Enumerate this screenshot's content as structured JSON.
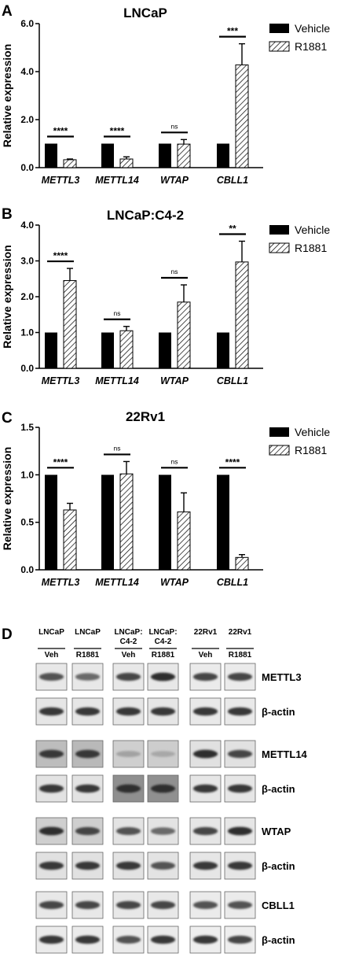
{
  "legend": {
    "vehicle": "Vehicle",
    "r1881": "R1881"
  },
  "chart_data": [
    {
      "panel": "A",
      "type": "bar",
      "title": "LNCaP",
      "ylabel": "Relative expression",
      "ylim": [
        0,
        6
      ],
      "yticks": [
        0,
        2,
        4,
        6
      ],
      "ytick_labels": [
        "0.0",
        "2.0",
        "4.0",
        "6.0"
      ],
      "categories": [
        "METTL3",
        "METTL14",
        "WTAP",
        "CBLL1"
      ],
      "series": [
        {
          "name": "Vehicle",
          "values": [
            1.0,
            1.0,
            1.0,
            1.0
          ],
          "errors": [
            0,
            0,
            0,
            0
          ]
        },
        {
          "name": "R1881",
          "values": [
            0.33,
            0.36,
            0.98,
            4.28
          ],
          "errors": [
            0.03,
            0.09,
            0.19,
            0.88
          ]
        }
      ],
      "significance": [
        "****",
        "****",
        "ns",
        "***"
      ]
    },
    {
      "panel": "B",
      "type": "bar",
      "title": "LNCaP:C4-2",
      "ylabel": "Relative expression",
      "ylim": [
        0,
        4
      ],
      "yticks": [
        0,
        1,
        2,
        3,
        4
      ],
      "ytick_labels": [
        "0.0",
        "1.0",
        "2.0",
        "3.0",
        "4.0"
      ],
      "categories": [
        "METTL3",
        "METTL14",
        "WTAP",
        "CBLL1"
      ],
      "series": [
        {
          "name": "Vehicle",
          "values": [
            1.0,
            1.0,
            1.0,
            1.0
          ],
          "errors": [
            0,
            0,
            0,
            0
          ]
        },
        {
          "name": "R1881",
          "values": [
            2.45,
            1.05,
            1.85,
            2.97
          ],
          "errors": [
            0.34,
            0.12,
            0.48,
            0.58
          ]
        }
      ],
      "significance": [
        "****",
        "ns",
        "ns",
        "**"
      ]
    },
    {
      "panel": "C",
      "type": "bar",
      "title": "22Rv1",
      "ylabel": "Relative expression",
      "ylim": [
        0,
        1.5
      ],
      "yticks": [
        0,
        0.5,
        1.0,
        1.5
      ],
      "ytick_labels": [
        "0.0",
        "0.5",
        "1.0",
        "1.5"
      ],
      "categories": [
        "METTL3",
        "METTL14",
        "WTAP",
        "CBLL1"
      ],
      "series": [
        {
          "name": "Vehicle",
          "values": [
            1.0,
            1.0,
            1.0,
            1.0
          ],
          "errors": [
            0,
            0,
            0,
            0
          ]
        },
        {
          "name": "R1881",
          "values": [
            0.63,
            1.01,
            0.61,
            0.13
          ],
          "errors": [
            0.07,
            0.13,
            0.2,
            0.03
          ]
        }
      ],
      "significance": [
        "****",
        "ns",
        "ns",
        "****"
      ]
    }
  ],
  "western_blot": {
    "panel": "D",
    "columns": [
      {
        "line1": "LNCaP",
        "line2": "",
        "condition": "Veh"
      },
      {
        "line1": "LNCaP",
        "line2": "",
        "condition": "R1881"
      },
      {
        "line1": "LNCaP:",
        "line2": "C4-2",
        "condition": "Veh"
      },
      {
        "line1": "LNCaP:",
        "line2": "C4-2",
        "condition": "R1881"
      },
      {
        "line1": "22Rv1",
        "line2": "",
        "condition": "Veh"
      },
      {
        "line1": "22Rv1",
        "line2": "",
        "condition": "R1881"
      }
    ],
    "rows": [
      {
        "label": "METTL3",
        "band_intensity": [
          0.8,
          0.7,
          0.85,
          0.95,
          0.85,
          0.85
        ],
        "background": [
          "#e8e8e8",
          "#e8e8e8",
          "#e8e8e8",
          "#e8e8e8",
          "#ebebeb",
          "#ebebeb"
        ]
      },
      {
        "label": "β-actin",
        "band_intensity": [
          0.9,
          0.9,
          0.9,
          0.9,
          0.9,
          0.9
        ],
        "background": [
          "#e6e6e6",
          "#e6e6e6",
          "#e6e6e6",
          "#e6e6e6",
          "#e9e9e9",
          "#e9e9e9"
        ]
      },
      {
        "label": "METTL14",
        "band_intensity": [
          0.9,
          0.9,
          0.35,
          0.3,
          0.95,
          0.85
        ],
        "background": [
          "#bdbdbd",
          "#b9b9b9",
          "#cfcfcf",
          "#cdcdcd",
          "#e1e1e1",
          "#e1e1e1"
        ]
      },
      {
        "label": "β-actin",
        "band_intensity": [
          0.9,
          0.9,
          0.95,
          0.95,
          0.9,
          0.9
        ],
        "background": [
          "#e3e3e3",
          "#e3e3e3",
          "#8f8f8f",
          "#909090",
          "#e6e6e6",
          "#e6e6e6"
        ]
      },
      {
        "label": "WTAP",
        "band_intensity": [
          0.95,
          0.85,
          0.8,
          0.7,
          0.85,
          0.95
        ],
        "background": [
          "#cfcfcf",
          "#cfcfcf",
          "#e3e3e3",
          "#e3e3e3",
          "#e6e6e6",
          "#e6e6e6"
        ]
      },
      {
        "label": "β-actin",
        "band_intensity": [
          0.9,
          0.9,
          0.9,
          0.8,
          0.9,
          0.9
        ],
        "background": [
          "#e1e1e1",
          "#e1e1e1",
          "#e3e3e3",
          "#e3e3e3",
          "#e6e6e6",
          "#e6e6e6"
        ]
      },
      {
        "label": "CBLL1",
        "band_intensity": [
          0.85,
          0.85,
          0.85,
          0.85,
          0.8,
          0.8
        ],
        "background": [
          "#e8e8e8",
          "#e8e8e8",
          "#e8e8e8",
          "#e8e8e8",
          "#ebebeb",
          "#ebebeb"
        ]
      },
      {
        "label": "β-actin",
        "band_intensity": [
          0.9,
          0.9,
          0.8,
          0.9,
          0.9,
          0.85
        ],
        "background": [
          "#ebebeb",
          "#ebebeb",
          "#ebebeb",
          "#ebebeb",
          "#eeeeee",
          "#eeeeee"
        ]
      }
    ]
  },
  "colors": {
    "vehicle_bar": "#000000",
    "r1881_hatch": "#000000",
    "background": "#ffffff"
  }
}
